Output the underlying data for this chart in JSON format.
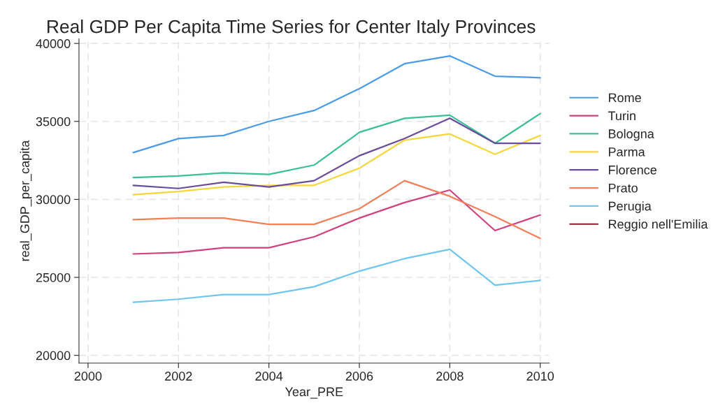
{
  "chart_data": {
    "type": "line",
    "title": "Real GDP Per Capita Time Series for Center Italy Provinces",
    "xlabel": "Year_PRE",
    "ylabel": "real_GDP_per_capita",
    "x": [
      2001,
      2002,
      2003,
      2004,
      2005,
      2006,
      2007,
      2008,
      2009,
      2010
    ],
    "series": [
      {
        "name": "Rome",
        "color": "#4c9be8",
        "values": [
          33000,
          33900,
          34100,
          35000,
          35700,
          37100,
          38700,
          39200,
          37900,
          37800
        ]
      },
      {
        "name": "Turin",
        "color": "#d0427f",
        "values": [
          26500,
          26600,
          26900,
          26900,
          27600,
          28800,
          29800,
          30600,
          28000,
          29000
        ]
      },
      {
        "name": "Bologna",
        "color": "#3cbf96",
        "values": [
          31400,
          31500,
          31700,
          31600,
          32200,
          34300,
          35200,
          35400,
          33600,
          35500
        ]
      },
      {
        "name": "Parma",
        "color": "#f5d73c",
        "values": [
          30300,
          30500,
          30800,
          30900,
          30900,
          32000,
          33800,
          34200,
          32900,
          34100
        ]
      },
      {
        "name": "Florence",
        "color": "#6a4c9c",
        "values": [
          30900,
          30700,
          31100,
          30800,
          31200,
          32800,
          33900,
          35200,
          33600,
          33600
        ]
      },
      {
        "name": "Prato",
        "color": "#f07f5a",
        "values": [
          28700,
          28800,
          28800,
          28400,
          28400,
          29400,
          31200,
          30200,
          28900,
          27500
        ]
      },
      {
        "name": "Perugia",
        "color": "#6ec6f0",
        "values": [
          23400,
          23600,
          23900,
          23900,
          24400,
          25400,
          26200,
          26800,
          24500,
          24800
        ]
      },
      {
        "name": "Reggio nell'Emilia",
        "color": "#8b1a2b",
        "values": [
          null,
          null,
          null,
          null,
          null,
          null,
          null,
          null,
          null,
          null
        ]
      }
    ],
    "xlim": [
      1999.8,
      2010.2
    ],
    "xticks": [
      2000,
      2002,
      2004,
      2006,
      2008,
      2010
    ],
    "ylim": [
      19500,
      40300
    ],
    "yticks": [
      20000,
      25000,
      30000,
      35000,
      40000
    ],
    "grid": true,
    "legend": "right",
    "line_style": "solid",
    "marker": "none"
  }
}
